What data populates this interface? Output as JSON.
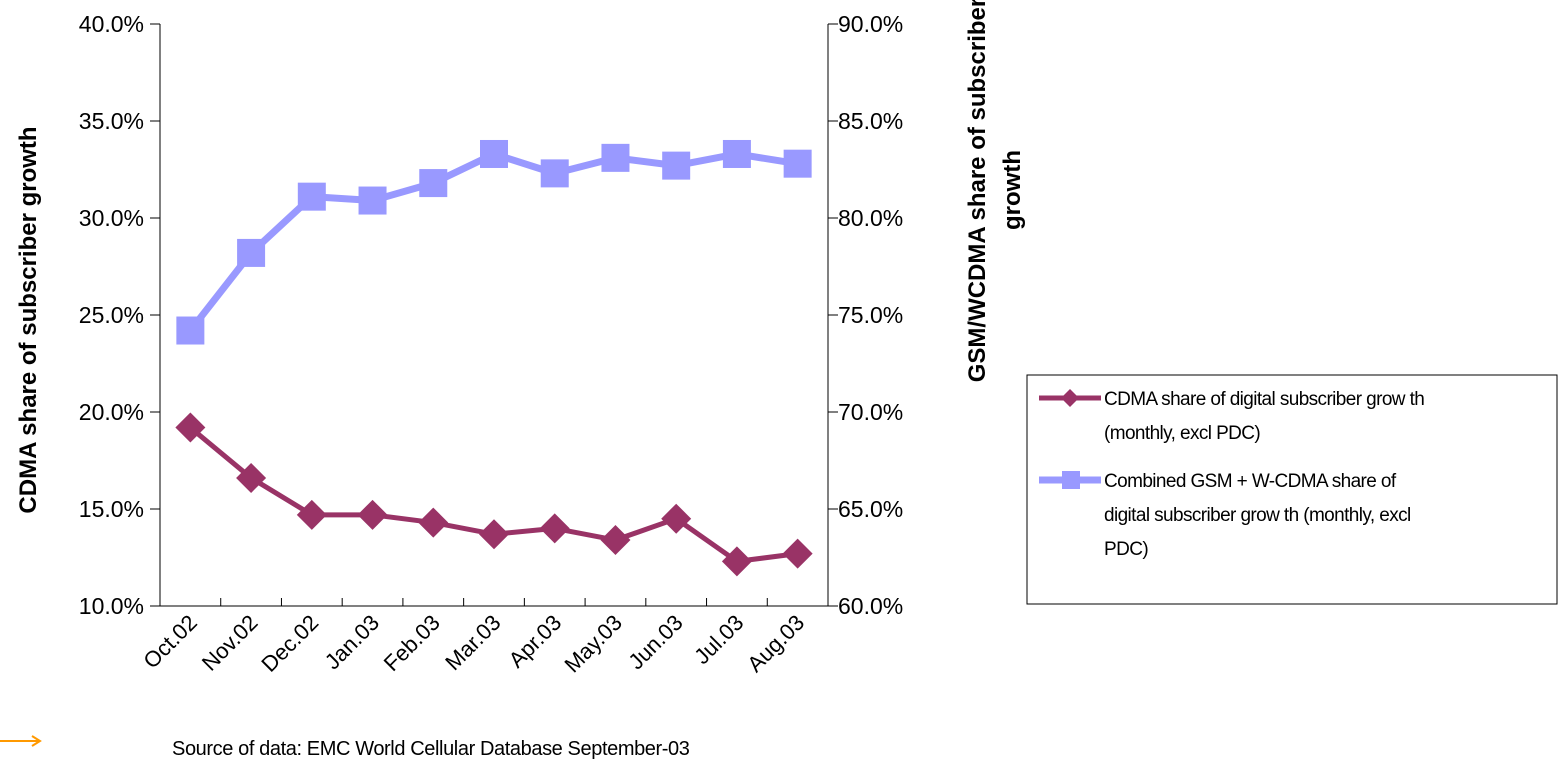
{
  "chart_data": {
    "type": "line",
    "categories": [
      "Oct.02",
      "Nov.02",
      "Dec.02",
      "Jan.03",
      "Feb.03",
      "Mar.03",
      "Apr.03",
      "May.03",
      "Jun.03",
      "Jul.03",
      "Aug.03"
    ],
    "series": [
      {
        "name": "CDMA share of digital subscriber grow th (monthly, excl PDC)",
        "legend_lines": [
          "CDMA share of digital subscriber grow th",
          "(monthly, excl PDC)"
        ],
        "axis": "left",
        "color": "#993366",
        "marker": "diamond",
        "values": [
          19.2,
          16.6,
          14.7,
          14.7,
          14.3,
          13.7,
          14.0,
          13.4,
          14.5,
          12.3,
          12.7
        ]
      },
      {
        "name": "Combined GSM + W-CDMA share of digital subscriber grow th (monthly, excl PDC)",
        "legend_lines": [
          "Combined GSM + W-CDMA share of",
          "digital subscriber grow th (monthly, excl",
          "PDC)"
        ],
        "axis": "right",
        "color": "#9999ff",
        "marker": "square",
        "values": [
          74.2,
          78.2,
          81.1,
          80.9,
          81.8,
          83.3,
          82.3,
          83.1,
          82.7,
          83.3,
          82.8
        ]
      }
    ],
    "y_left": {
      "label": "CDMA share of subscriber growth",
      "ylim": [
        10,
        40
      ],
      "ticks": [
        10,
        15,
        20,
        25,
        30,
        35,
        40
      ],
      "tick_labels": [
        "10.0%",
        "15.0%",
        "20.0%",
        "25.0%",
        "30.0%",
        "35.0%",
        "40.0%"
      ]
    },
    "y_right": {
      "label_lines": [
        "GSM/WCDMA share of subscriber",
        "growth"
      ],
      "ylim": [
        60,
        90
      ],
      "ticks": [
        60,
        65,
        70,
        75,
        80,
        85,
        90
      ],
      "tick_labels": [
        "60.0%",
        "65.0%",
        "70.0%",
        "75.0%",
        "80.0%",
        "85.0%",
        "90.0%"
      ]
    },
    "xlabel": "",
    "grid": false,
    "legend_position": "right",
    "source": "Source of data: EMC World Cellular Database September-03"
  },
  "decor": {
    "arrow_color": "#ff9900",
    "arrow_icon": "arrow-right-icon"
  }
}
